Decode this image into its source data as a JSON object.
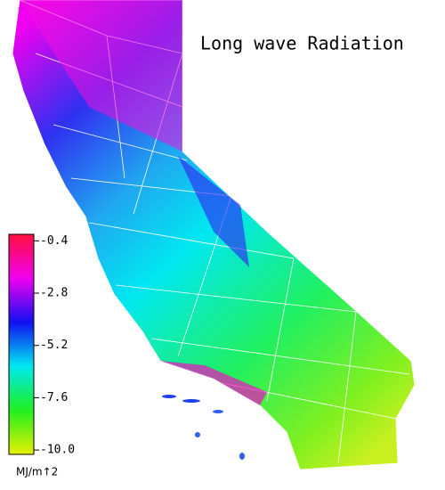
{
  "title": "Long wave Radiation",
  "colorbar": {
    "ticks": [
      -0.4,
      -2.8,
      -5.2,
      -7.6,
      {
        "value": -10,
        "label": "-10.0"
      }
    ],
    "clim": [
      -10.2,
      -0.1
    ],
    "colors": [
      "#e8f000",
      "#20f020",
      "#00e8f0",
      "#1010f0",
      "#f000f0",
      "#ff1040"
    ],
    "unit": "MJ/m↑2"
  }
}
